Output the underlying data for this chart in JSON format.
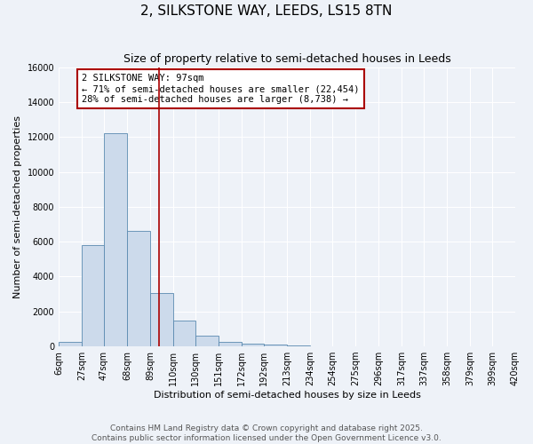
{
  "title": "2, SILKSTONE WAY, LEEDS, LS15 8TN",
  "subtitle": "Size of property relative to semi-detached houses in Leeds",
  "xlabel": "Distribution of semi-detached houses by size in Leeds",
  "ylabel": "Number of semi-detached properties",
  "property_size": 97,
  "property_label": "2 SILKSTONE WAY: 97sqm",
  "pct_smaller": 71,
  "count_smaller": 22454,
  "pct_larger": 28,
  "count_larger": 8738,
  "bin_edges": [
    6,
    27,
    47,
    68,
    89,
    110,
    130,
    151,
    172,
    192,
    213,
    234,
    254,
    275,
    296,
    317,
    337,
    358,
    379,
    399,
    420
  ],
  "bin_labels": [
    "6sqm",
    "27sqm",
    "47sqm",
    "68sqm",
    "89sqm",
    "110sqm",
    "130sqm",
    "151sqm",
    "172sqm",
    "192sqm",
    "213sqm",
    "234sqm",
    "254sqm",
    "275sqm",
    "296sqm",
    "317sqm",
    "337sqm",
    "358sqm",
    "379sqm",
    "399sqm",
    "420sqm"
  ],
  "bar_heights": [
    270,
    5800,
    12200,
    6600,
    3050,
    1500,
    620,
    280,
    150,
    100,
    80,
    0,
    0,
    0,
    0,
    0,
    0,
    0,
    0,
    0
  ],
  "bar_color": "#ccdaeb",
  "bar_edge_color": "#5a8ab0",
  "vline_x": 97,
  "vline_color": "#aa0000",
  "annotation_box_color": "#aa0000",
  "ylim": [
    0,
    16000
  ],
  "yticks": [
    0,
    2000,
    4000,
    6000,
    8000,
    10000,
    12000,
    14000,
    16000
  ],
  "footer_line1": "Contains HM Land Registry data © Crown copyright and database right 2025.",
  "footer_line2": "Contains public sector information licensed under the Open Government Licence v3.0.",
  "bg_color": "#eef2f8",
  "grid_color": "#ffffff",
  "title_fontsize": 11,
  "subtitle_fontsize": 9,
  "tick_fontsize": 7,
  "label_fontsize": 8,
  "footer_fontsize": 6.5,
  "ann_fontsize": 7.5
}
